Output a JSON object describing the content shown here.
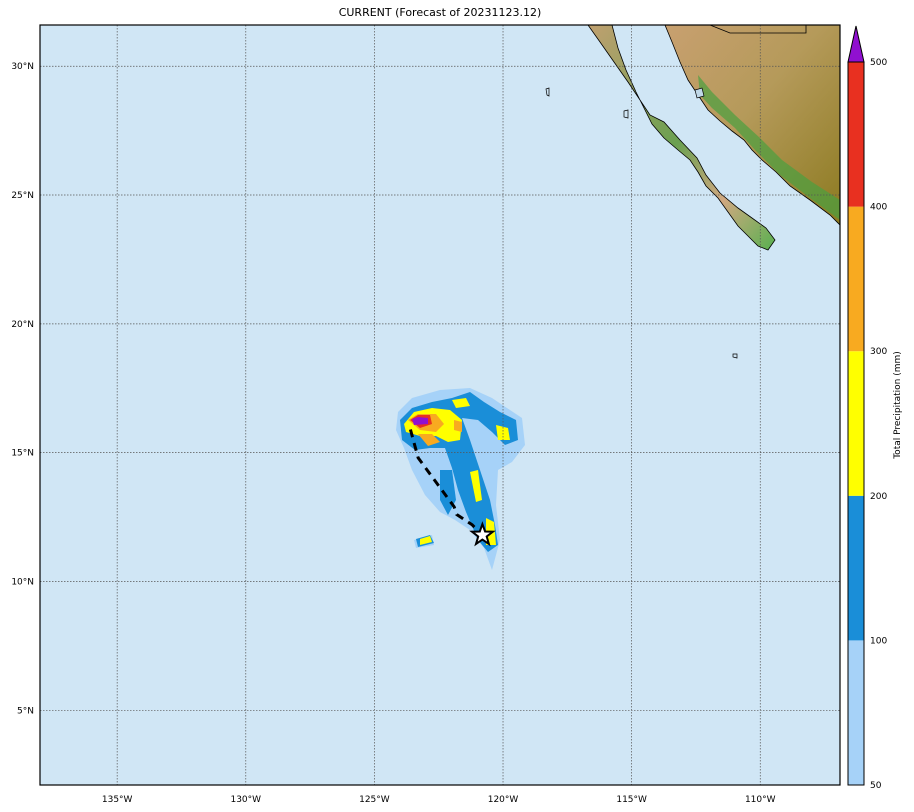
{
  "title": "CURRENT (Forecast of 20231123.12)",
  "map": {
    "extent": {
      "lon": [
        -138.0,
        -106.9
      ],
      "lat": [
        2.1,
        31.6
      ]
    },
    "ocean_color": "#d0e6f5",
    "gridlines": "dotted",
    "lon_ticks": [
      {
        "value": -135,
        "label": "135°W"
      },
      {
        "value": -130,
        "label": "130°W"
      },
      {
        "value": -125,
        "label": "125°W"
      },
      {
        "value": -120,
        "label": "120°W"
      },
      {
        "value": -115,
        "label": "115°W"
      },
      {
        "value": -110,
        "label": "110°W"
      }
    ],
    "lat_ticks": [
      {
        "value": 30,
        "label": "30°N"
      },
      {
        "value": 25,
        "label": "25°N"
      },
      {
        "value": 20,
        "label": "20°N"
      },
      {
        "value": 15,
        "label": "15°N"
      },
      {
        "value": 10,
        "label": "10°N"
      },
      {
        "value": 5,
        "label": "5°N"
      }
    ],
    "track": [
      [
        -123.6,
        15.9
      ],
      [
        -123.3,
        14.8
      ],
      [
        -121.9,
        12.9
      ],
      [
        -121.8,
        12.6
      ],
      [
        -121.2,
        12.2
      ],
      [
        -120.8,
        11.8
      ]
    ],
    "current_position": {
      "lon": -120.8,
      "lat": 11.8,
      "marker": "star"
    }
  },
  "colorbar": {
    "label": "Total Precipitation (mm)",
    "ticks": [
      "50",
      "100",
      "200",
      "300",
      "400",
      "500"
    ],
    "colors": [
      "#a6d2f8",
      "#1a8ed8",
      "#ffff00",
      "#f8aa20",
      "#e83020"
    ],
    "extend_color": "#9010d0"
  }
}
